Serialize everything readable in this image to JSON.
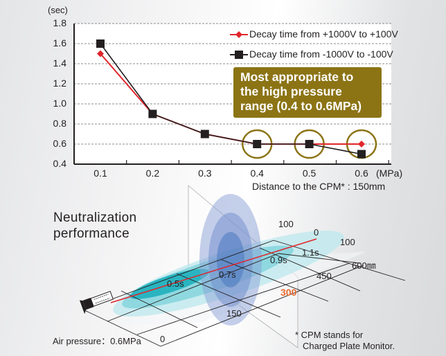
{
  "chart_data": {
    "type": "line",
    "ylabel": "(sec)",
    "xlabel": "(MPa)",
    "subtitle": "Distance to the CPM* : 150mm",
    "ylim": [
      0.4,
      1.8
    ],
    "yticks": [
      "0.4",
      "0.6",
      "0.8",
      "1.0",
      "1.2",
      "1.4",
      "1.6",
      "1.8"
    ],
    "yticks_values": [
      0.4,
      0.6,
      0.8,
      1.0,
      1.2,
      1.4,
      1.6,
      1.8
    ],
    "categories": [
      "0.1",
      "0.2",
      "0.3",
      "0.4",
      "0.5",
      "0.6"
    ],
    "x": [
      0.1,
      0.2,
      0.3,
      0.4,
      0.5,
      0.6
    ],
    "grid": true,
    "legend_position": "top-right",
    "series": [
      {
        "name": "Decay time from +1000V to +100V",
        "color": "#e0262b",
        "marker": "diamond",
        "values": [
          1.5,
          0.9,
          0.7,
          0.6,
          0.6,
          0.6
        ]
      },
      {
        "name": "Decay time from -1000V to -100V",
        "color": "#231f20",
        "marker": "square",
        "values": [
          1.6,
          0.9,
          0.7,
          0.6,
          0.6,
          0.5
        ]
      }
    ],
    "annotation": {
      "lines": [
        "Most appropriate to",
        "the high pressure",
        "range (0.4 to 0.6MPa)"
      ],
      "color": "#8c7415",
      "highlighted_x": [
        0.4,
        0.5,
        0.6
      ]
    }
  },
  "diagram": {
    "title_line1": "Neutralization",
    "title_line2": "performance",
    "decay_labels": [
      "0.5s",
      "0.7s",
      "0.9s",
      "1.1s"
    ],
    "distance_labels": [
      "0",
      "150",
      "300",
      "450",
      "600㎜"
    ],
    "height_labels": [
      "100",
      "0",
      "100"
    ],
    "highlight_distance": "300",
    "highlight_color": "#e8692d",
    "air_pressure": "Air pressure：0.6MPa",
    "footnote_line1": "* CPM stands for",
    "footnote_line2": "Charged Plate Monitor."
  }
}
